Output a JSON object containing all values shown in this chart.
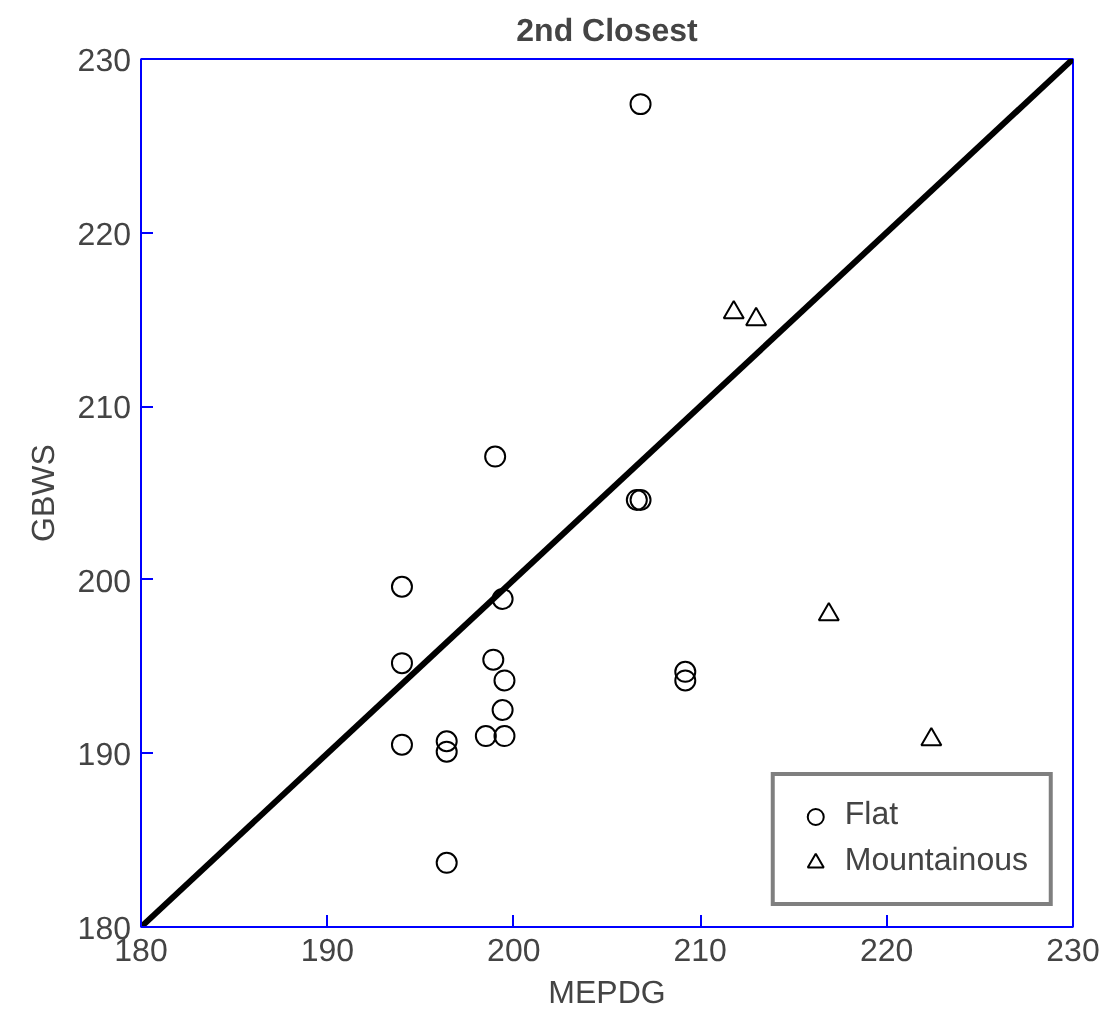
{
  "chart_data": {
    "type": "scatter",
    "title": "2nd Closest",
    "xlabel": "MEPDG",
    "ylabel": "GBWS",
    "xlim": [
      180,
      230
    ],
    "ylim": [
      180,
      230
    ],
    "xticks": [
      180,
      190,
      200,
      210,
      220,
      230
    ],
    "yticks": [
      180,
      190,
      200,
      210,
      220,
      230
    ],
    "grid": false,
    "legend": "bottom right",
    "series": [
      {
        "name": "Flat",
        "color": "#000000",
        "marker": "circle",
        "x": [
          194.0,
          194.0,
          194.0,
          196.4,
          196.4,
          196.4,
          198.5,
          198.9,
          199.0,
          199.4,
          199.5,
          199.4,
          199.5,
          206.6,
          206.8,
          206.8,
          209.2,
          209.2
        ],
        "values": [
          199.6,
          195.2,
          190.5,
          190.7,
          190.1,
          183.7,
          191.0,
          195.4,
          207.1,
          198.9,
          194.2,
          192.5,
          191.0,
          204.6,
          204.6,
          227.4,
          194.7,
          194.2
        ]
      },
      {
        "name": "Mountainous",
        "color": "#000000",
        "marker": "triangle",
        "x": [
          211.8,
          213.0,
          216.9,
          222.4
        ],
        "values": [
          215.4,
          215.0,
          198.0,
          190.8
        ]
      },
      {
        "type": "line",
        "color": "#000000",
        "x": [
          180,
          230
        ],
        "values": [
          180,
          230
        ]
      }
    ]
  }
}
